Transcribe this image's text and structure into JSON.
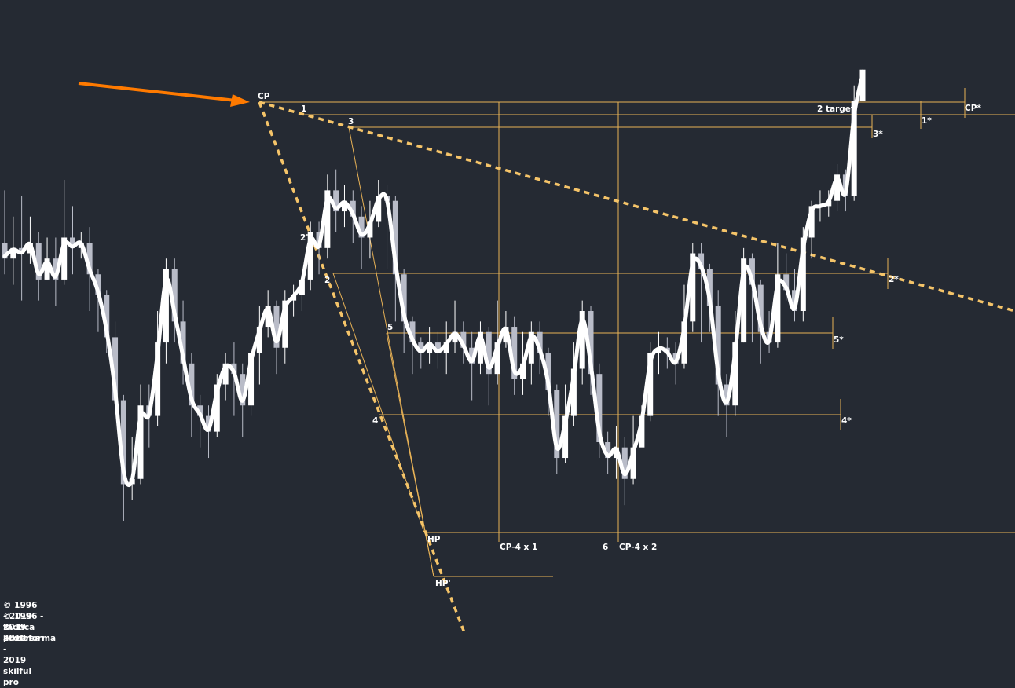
{
  "chart_data": {
    "type": "candlestick",
    "title": "",
    "xlabel": "",
    "ylabel": "",
    "grid": false,
    "colors": {
      "background": "#252a33",
      "levels": "#e8b256",
      "trendlines": "#f5c469",
      "smooth_line": "#ffffff",
      "bull_candle": "#ffffff",
      "bear_candle": "#b9bcc8",
      "arrow": "#ff7a00"
    },
    "candles_note": "price in screen-relative units (0 = bottom of plot, 100 = top)",
    "candles": [
      [
        63,
        60,
        73,
        57
      ],
      [
        60,
        62,
        68,
        55
      ],
      [
        62,
        61,
        72,
        52
      ],
      [
        61,
        63,
        68,
        59
      ],
      [
        63,
        56,
        65,
        52
      ],
      [
        56,
        60,
        64,
        56
      ],
      [
        60,
        56,
        64,
        51
      ],
      [
        56,
        64,
        75,
        55
      ],
      [
        64,
        62,
        70,
        57
      ],
      [
        62,
        63,
        65,
        60
      ],
      [
        63,
        57,
        66,
        50
      ],
      [
        57,
        53,
        58,
        46
      ],
      [
        53,
        45,
        54,
        42
      ],
      [
        45,
        33,
        48,
        27
      ],
      [
        33,
        17,
        34,
        10
      ],
      [
        17,
        18,
        26,
        14
      ],
      [
        18,
        32,
        36,
        17
      ],
      [
        32,
        30,
        36,
        24
      ],
      [
        30,
        44,
        50,
        28
      ],
      [
        44,
        58,
        60,
        40
      ],
      [
        58,
        48,
        60,
        44
      ],
      [
        48,
        40,
        52,
        36
      ],
      [
        40,
        32,
        42,
        26
      ],
      [
        32,
        30,
        34,
        24
      ],
      [
        30,
        27,
        32,
        22
      ],
      [
        27,
        36,
        38,
        26
      ],
      [
        36,
        40,
        42,
        33
      ],
      [
        40,
        38,
        44,
        30
      ],
      [
        38,
        32,
        40,
        26
      ],
      [
        32,
        42,
        43,
        30
      ],
      [
        42,
        47,
        51,
        36
      ],
      [
        47,
        51,
        54,
        45
      ],
      [
        51,
        43,
        52,
        38
      ],
      [
        43,
        52,
        54,
        40
      ],
      [
        52,
        53,
        55,
        49
      ],
      [
        53,
        56,
        57,
        50
      ],
      [
        56,
        65,
        67,
        54
      ],
      [
        65,
        62,
        67,
        57
      ],
      [
        62,
        73,
        76,
        60
      ],
      [
        73,
        69,
        77,
        65
      ],
      [
        69,
        71,
        74,
        66
      ],
      [
        71,
        68,
        73,
        63
      ],
      [
        68,
        64,
        70,
        58
      ],
      [
        64,
        67,
        71,
        60
      ],
      [
        67,
        72,
        75,
        66
      ],
      [
        72,
        71,
        74,
        58
      ],
      [
        71,
        57,
        72,
        48
      ],
      [
        57,
        48,
        58,
        42
      ],
      [
        48,
        44,
        49,
        38
      ],
      [
        44,
        42,
        45,
        39
      ],
      [
        42,
        44,
        47,
        40
      ],
      [
        44,
        42,
        46,
        39
      ],
      [
        42,
        44,
        48,
        38
      ],
      [
        44,
        46,
        52,
        42
      ],
      [
        46,
        43,
        48,
        40
      ],
      [
        43,
        40,
        46,
        33
      ],
      [
        40,
        46,
        48,
        38
      ],
      [
        46,
        38,
        47,
        32
      ],
      [
        38,
        44,
        52,
        36
      ],
      [
        44,
        47,
        50,
        43
      ],
      [
        47,
        37,
        49,
        34
      ],
      [
        37,
        40,
        46,
        34
      ],
      [
        40,
        46,
        48,
        36
      ],
      [
        46,
        42,
        48,
        38
      ],
      [
        42,
        35,
        43,
        30
      ],
      [
        35,
        22,
        36,
        19
      ],
      [
        22,
        30,
        36,
        21
      ],
      [
        30,
        39,
        44,
        28
      ],
      [
        39,
        50,
        52,
        36
      ],
      [
        50,
        38,
        51,
        34
      ],
      [
        38,
        25,
        40,
        22
      ],
      [
        25,
        22,
        27,
        19
      ],
      [
        22,
        24,
        28,
        18
      ],
      [
        24,
        18,
        26,
        13
      ],
      [
        18,
        24,
        30,
        17
      ],
      [
        24,
        30,
        32,
        27
      ],
      [
        30,
        42,
        44,
        29
      ],
      [
        42,
        43,
        46,
        38
      ],
      [
        43,
        42,
        45,
        39
      ],
      [
        42,
        40,
        44,
        36
      ],
      [
        40,
        48,
        55,
        39
      ],
      [
        48,
        61,
        63,
        46
      ],
      [
        61,
        58,
        63,
        44
      ],
      [
        58,
        51,
        59,
        46
      ],
      [
        51,
        36,
        54,
        30
      ],
      [
        36,
        32,
        38,
        26
      ],
      [
        32,
        44,
        50,
        30
      ],
      [
        44,
        60,
        62,
        44
      ],
      [
        60,
        55,
        61,
        44
      ],
      [
        55,
        46,
        56,
        40
      ],
      [
        46,
        44,
        50,
        42
      ],
      [
        44,
        57,
        63,
        43
      ],
      [
        57,
        54,
        61,
        52
      ],
      [
        54,
        50,
        58,
        48
      ],
      [
        50,
        64,
        66,
        48
      ],
      [
        64,
        70,
        71,
        60
      ],
      [
        70,
        70,
        73,
        67
      ],
      [
        70,
        71,
        73,
        68
      ],
      [
        71,
        76,
        78,
        69
      ],
      [
        76,
        72,
        77,
        69
      ],
      [
        72,
        90,
        93,
        71
      ],
      [
        90,
        96,
        96,
        90
      ]
    ]
  },
  "levels": {
    "cp": "CP",
    "cp_star": "CP*",
    "l1": "1",
    "l1_star": "1*",
    "l2": "2",
    "l2_star": "2*",
    "l2_prime": "2'",
    "l3": "3",
    "l3_star": "3*",
    "l4": "4",
    "l4_star": "4*",
    "l5": "5",
    "l5_star": "5*",
    "l6": "6",
    "hp": "HP",
    "hp_prime": "HP'",
    "cp4x1": "CP-4 x 1",
    "cp4x2": "CP-4 x 2",
    "target": "2 target"
  },
  "copyright": [
    "© 1996 - 2019 tactica adversa",
    "© 1996 - 2019 protoforma",
    "© 2010 - 2019 skilful pro"
  ]
}
